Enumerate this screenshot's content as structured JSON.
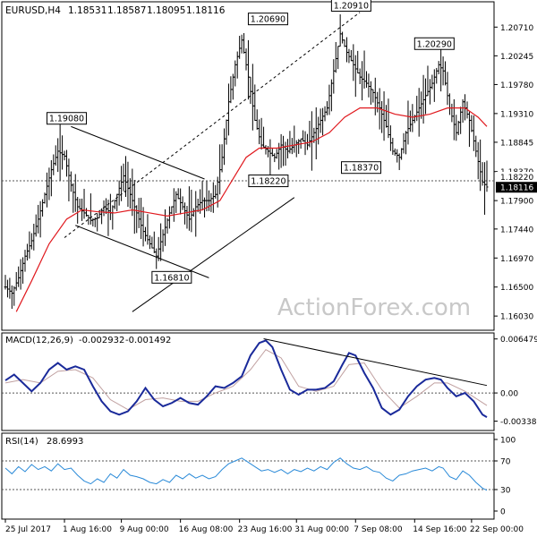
{
  "chart_data": {
    "type": "line",
    "symbol_header": "EURUSD,H4",
    "ohlc_header": [
      "1.18531",
      "1.18587",
      "1.18095",
      "1.18116"
    ],
    "watermark": "ActionForex.com",
    "x_tick_labels": [
      "25 Jul 2017",
      "1 Aug 16:00",
      "9 Aug 00:00",
      "16 Aug 08:00",
      "23 Aug 16:00",
      "31 Aug 00:00",
      "7 Sep 08:00",
      "14 Sep 16:00",
      "22 Sep 00:00"
    ],
    "x_tick_bars": [
      0,
      27,
      53,
      80,
      107,
      133,
      160,
      187,
      213
    ],
    "bar_count": 220,
    "price_panel": {
      "ylim": [
        1.158,
        1.2112
      ],
      "tick_labels": [
        "1.20710",
        "1.20245",
        "1.19780",
        "1.19310",
        "1.18845",
        "1.18370",
        "1.17900",
        "1.17440",
        "1.16970",
        "1.16500",
        "1.16030"
      ],
      "tick_values": [
        1.2071,
        1.20245,
        1.1978,
        1.1931,
        1.18845,
        1.1837,
        1.179,
        1.1744,
        1.1697,
        1.165,
        1.1603
      ],
      "current_price_label": "1.18116",
      "current_price": 1.18116,
      "reference_level_label": "1.18220",
      "reference_level": 1.1822,
      "close_series": [
        [
          0,
          1.165
        ],
        [
          3,
          1.164
        ],
        [
          6,
          1.1665
        ],
        [
          9,
          1.17
        ],
        [
          12,
          1.1725
        ],
        [
          15,
          1.176
        ],
        [
          18,
          1.18
        ],
        [
          21,
          1.184
        ],
        [
          24,
          1.187
        ],
        [
          27,
          1.1862
        ],
        [
          30,
          1.1815
        ],
        [
          33,
          1.178
        ],
        [
          36,
          1.177
        ],
        [
          39,
          1.1758
        ],
        [
          42,
          1.1762
        ],
        [
          45,
          1.178
        ],
        [
          48,
          1.177
        ],
        [
          51,
          1.18
        ],
        [
          54,
          1.183
        ],
        [
          57,
          1.18
        ],
        [
          60,
          1.177
        ],
        [
          63,
          1.174
        ],
        [
          66,
          1.172
        ],
        [
          69,
          1.17
        ],
        [
          72,
          1.1735
        ],
        [
          75,
          1.177
        ],
        [
          78,
          1.18
        ],
        [
          81,
          1.178
        ],
        [
          84,
          1.176
        ],
        [
          87,
          1.178
        ],
        [
          90,
          1.179
        ],
        [
          93,
          1.179
        ],
        [
          96,
          1.18
        ],
        [
          99,
          1.186
        ],
        [
          102,
          1.195
        ],
        [
          105,
          1.201
        ],
        [
          108,
          1.205
        ],
        [
          111,
          1.199
        ],
        [
          114,
          1.192
        ],
        [
          117,
          1.188
        ],
        [
          120,
          1.187
        ],
        [
          123,
          1.186
        ],
        [
          126,
          1.188
        ],
        [
          129,
          1.187
        ],
        [
          132,
          1.188
        ],
        [
          135,
          1.189
        ],
        [
          138,
          1.188
        ],
        [
          141,
          1.19
        ],
        [
          144,
          1.192
        ],
        [
          147,
          1.194
        ],
        [
          150,
          1.2
        ],
        [
          153,
          1.206
        ],
        [
          156,
          1.203
        ],
        [
          159,
          1.201
        ],
        [
          162,
          1.199
        ],
        [
          165,
          1.198
        ],
        [
          168,
          1.1965
        ],
        [
          171,
          1.194
        ],
        [
          174,
          1.191
        ],
        [
          177,
          1.187
        ],
        [
          180,
          1.186
        ],
        [
          183,
          1.19
        ],
        [
          186,
          1.192
        ],
        [
          189,
          1.194
        ],
        [
          192,
          1.196
        ],
        [
          195,
          1.198
        ],
        [
          198,
          1.201
        ],
        [
          200,
          1.2
        ],
        [
          203,
          1.194
        ],
        [
          206,
          1.19
        ],
        [
          209,
          1.195
        ],
        [
          212,
          1.192
        ],
        [
          215,
          1.187
        ],
        [
          218,
          1.182
        ],
        [
          220,
          1.1812
        ]
      ],
      "ma_series": [
        [
          5,
          1.161
        ],
        [
          12,
          1.166
        ],
        [
          20,
          1.172
        ],
        [
          28,
          1.176
        ],
        [
          35,
          1.1775
        ],
        [
          42,
          1.1772
        ],
        [
          50,
          1.177
        ],
        [
          58,
          1.1775
        ],
        [
          66,
          1.177
        ],
        [
          74,
          1.1765
        ],
        [
          82,
          1.177
        ],
        [
          90,
          1.1775
        ],
        [
          98,
          1.179
        ],
        [
          104,
          1.1825
        ],
        [
          110,
          1.186
        ],
        [
          116,
          1.1875
        ],
        [
          124,
          1.1875
        ],
        [
          132,
          1.188
        ],
        [
          140,
          1.1885
        ],
        [
          148,
          1.19
        ],
        [
          155,
          1.1925
        ],
        [
          162,
          1.194
        ],
        [
          170,
          1.194
        ],
        [
          178,
          1.193
        ],
        [
          186,
          1.1925
        ],
        [
          194,
          1.193
        ],
        [
          202,
          1.194
        ],
        [
          210,
          1.194
        ],
        [
          216,
          1.1925
        ],
        [
          220,
          1.191
        ]
      ],
      "callouts": [
        {
          "label": "1.19080",
          "bar": 28,
          "price": 1.1908
        },
        {
          "label": "1.16810",
          "bar": 76,
          "price": 1.1681
        },
        {
          "label": "1.18220",
          "bar": 112,
          "price": 1.1822
        },
        {
          "label": "1.20690",
          "bar": 120,
          "price": 1.2069
        },
        {
          "label": "1.20910",
          "bar": 158,
          "price": 1.2091
        },
        {
          "label": "1.20290",
          "bar": 196,
          "price": 1.2029
        },
        {
          "label": "1.18370",
          "bar": 174,
          "price": 1.1837
        }
      ],
      "trendlines": [
        {
          "style": "solid",
          "from": [
            30,
            1.191
          ],
          "to": [
            91,
            1.1825
          ]
        },
        {
          "style": "solid",
          "from": [
            32,
            1.175
          ],
          "to": [
            93,
            1.1665
          ]
        },
        {
          "style": "solid",
          "from": [
            58,
            1.161
          ],
          "to": [
            132,
            1.1795
          ]
        },
        {
          "style": "dashed",
          "from": [
            27,
            1.173
          ],
          "to": [
            162,
            1.2095
          ]
        }
      ]
    },
    "macd_panel": {
      "header": "MACD(12,26,9)",
      "header_values": [
        "-0.002932",
        "-0.001492"
      ],
      "ylim": [
        -0.0045,
        0.0072
      ],
      "tick_labels": [
        "0.006479",
        "0.00",
        "-0.00338"
      ],
      "tick_values": [
        0.006479,
        0.0,
        -0.00338
      ],
      "macd_series": [
        [
          0,
          0.0015
        ],
        [
          4,
          0.0022
        ],
        [
          8,
          0.0012
        ],
        [
          12,
          0.0002
        ],
        [
          16,
          0.0012
        ],
        [
          20,
          0.0028
        ],
        [
          24,
          0.0036
        ],
        [
          28,
          0.0028
        ],
        [
          32,
          0.0032
        ],
        [
          36,
          0.0028
        ],
        [
          40,
          0.0008
        ],
        [
          44,
          -0.001
        ],
        [
          48,
          -0.0022
        ],
        [
          52,
          -0.0026
        ],
        [
          56,
          -0.0022
        ],
        [
          60,
          -0.001
        ],
        [
          64,
          0.0006
        ],
        [
          68,
          -0.0008
        ],
        [
          72,
          -0.0016
        ],
        [
          76,
          -0.0012
        ],
        [
          80,
          -0.0006
        ],
        [
          84,
          -0.0012
        ],
        [
          88,
          -0.0014
        ],
        [
          92,
          -0.0004
        ],
        [
          96,
          0.0008
        ],
        [
          100,
          0.0006
        ],
        [
          104,
          0.0012
        ],
        [
          108,
          0.002
        ],
        [
          112,
          0.0045
        ],
        [
          116,
          0.006
        ],
        [
          119,
          0.0063
        ],
        [
          122,
          0.0055
        ],
        [
          126,
          0.0028
        ],
        [
          130,
          0.0004
        ],
        [
          134,
          -0.0002
        ],
        [
          138,
          0.0004
        ],
        [
          142,
          0.0004
        ],
        [
          146,
          0.0006
        ],
        [
          150,
          0.0014
        ],
        [
          154,
          0.0034
        ],
        [
          157,
          0.0048
        ],
        [
          160,
          0.0045
        ],
        [
          164,
          0.0024
        ],
        [
          168,
          0.0006
        ],
        [
          172,
          -0.0018
        ],
        [
          176,
          -0.0026
        ],
        [
          180,
          -0.002
        ],
        [
          184,
          -0.0004
        ],
        [
          188,
          0.0008
        ],
        [
          192,
          0.0016
        ],
        [
          196,
          0.0018
        ],
        [
          199,
          0.0016
        ],
        [
          202,
          0.0006
        ],
        [
          206,
          -0.0004
        ],
        [
          210,
          0.0
        ],
        [
          214,
          -0.001
        ],
        [
          218,
          -0.0026
        ],
        [
          220,
          -0.0029
        ]
      ],
      "signal_series": [
        [
          0,
          0.0012
        ],
        [
          8,
          0.0016
        ],
        [
          16,
          0.0012
        ],
        [
          24,
          0.0026
        ],
        [
          32,
          0.0028
        ],
        [
          40,
          0.0018
        ],
        [
          48,
          -0.0008
        ],
        [
          56,
          -0.002
        ],
        [
          64,
          -0.0008
        ],
        [
          72,
          -0.0006
        ],
        [
          80,
          -0.001
        ],
        [
          88,
          -0.001
        ],
        [
          96,
          0.0
        ],
        [
          104,
          0.0008
        ],
        [
          112,
          0.0028
        ],
        [
          119,
          0.0052
        ],
        [
          126,
          0.0042
        ],
        [
          134,
          0.0008
        ],
        [
          142,
          0.0002
        ],
        [
          150,
          0.0008
        ],
        [
          157,
          0.0034
        ],
        [
          164,
          0.0036
        ],
        [
          172,
          0.0004
        ],
        [
          180,
          -0.0018
        ],
        [
          188,
          -0.0004
        ],
        [
          196,
          0.0012
        ],
        [
          202,
          0.0012
        ],
        [
          210,
          0.0002
        ],
        [
          220,
          -0.0015
        ]
      ],
      "trendline": {
        "from": [
          118,
          0.0065
        ],
        "to": [
          220,
          0.0009
        ]
      }
    },
    "rsi_panel": {
      "header": "RSI(14)",
      "header_value": "28.6993",
      "ylim": [
        0,
        100
      ],
      "tick_labels": [
        "100",
        "70",
        "30",
        "0"
      ],
      "tick_values": [
        100,
        70,
        30,
        0
      ],
      "reference_levels": [
        70,
        30
      ],
      "rsi_series": [
        [
          0,
          60
        ],
        [
          3,
          52
        ],
        [
          6,
          62
        ],
        [
          9,
          55
        ],
        [
          12,
          65
        ],
        [
          15,
          58
        ],
        [
          18,
          62
        ],
        [
          21,
          56
        ],
        [
          24,
          66
        ],
        [
          27,
          58
        ],
        [
          30,
          60
        ],
        [
          33,
          50
        ],
        [
          36,
          42
        ],
        [
          39,
          38
        ],
        [
          42,
          45
        ],
        [
          45,
          40
        ],
        [
          48,
          52
        ],
        [
          51,
          46
        ],
        [
          54,
          58
        ],
        [
          57,
          50
        ],
        [
          60,
          48
        ],
        [
          63,
          45
        ],
        [
          66,
          40
        ],
        [
          69,
          38
        ],
        [
          72,
          44
        ],
        [
          75,
          40
        ],
        [
          78,
          50
        ],
        [
          81,
          45
        ],
        [
          84,
          52
        ],
        [
          87,
          46
        ],
        [
          90,
          50
        ],
        [
          93,
          45
        ],
        [
          96,
          48
        ],
        [
          99,
          58
        ],
        [
          102,
          66
        ],
        [
          105,
          70
        ],
        [
          108,
          74
        ],
        [
          111,
          68
        ],
        [
          114,
          62
        ],
        [
          117,
          56
        ],
        [
          120,
          58
        ],
        [
          123,
          54
        ],
        [
          126,
          58
        ],
        [
          129,
          52
        ],
        [
          132,
          58
        ],
        [
          135,
          55
        ],
        [
          138,
          60
        ],
        [
          141,
          56
        ],
        [
          144,
          62
        ],
        [
          147,
          58
        ],
        [
          150,
          68
        ],
        [
          153,
          74
        ],
        [
          156,
          66
        ],
        [
          159,
          60
        ],
        [
          162,
          58
        ],
        [
          165,
          62
        ],
        [
          168,
          56
        ],
        [
          171,
          54
        ],
        [
          174,
          46
        ],
        [
          177,
          42
        ],
        [
          180,
          50
        ],
        [
          183,
          52
        ],
        [
          186,
          56
        ],
        [
          189,
          58
        ],
        [
          192,
          60
        ],
        [
          195,
          56
        ],
        [
          198,
          62
        ],
        [
          200,
          60
        ],
        [
          203,
          48
        ],
        [
          206,
          44
        ],
        [
          209,
          56
        ],
        [
          212,
          50
        ],
        [
          215,
          40
        ],
        [
          218,
          32
        ],
        [
          220,
          29
        ]
      ]
    }
  }
}
